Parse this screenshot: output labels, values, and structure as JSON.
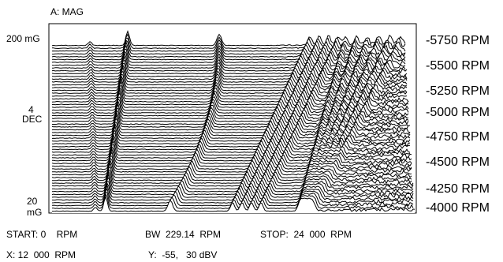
{
  "chart_data": {
    "type": "waterfall",
    "title": "A: MAG",
    "y_axis": {
      "top_label": "200 mG",
      "mid_label_line1": "4",
      "mid_label_line2": "DEC",
      "bottom_label_line1": "20",
      "bottom_label_line2": "mG"
    },
    "rpm_labels": [
      "-5750 RPM",
      "-5500 RPM",
      "-5250 RPM",
      "-5000 RPM",
      "-4750 RPM",
      "-4500 RPM",
      "-4250 RPM",
      "-4000 RPM"
    ],
    "x_range_rpm": [
      0,
      24000
    ],
    "start_label": "START: 0    RPM",
    "bw_label": "BW  229.14  RPM",
    "stop_label": "STOP:  24  000  RPM",
    "marker_x_label": "X: 12  000  RPM",
    "marker_y_label": "Y:  -55,   30 dBV",
    "line_color": "#000000",
    "background_color": "#ffffff"
  }
}
